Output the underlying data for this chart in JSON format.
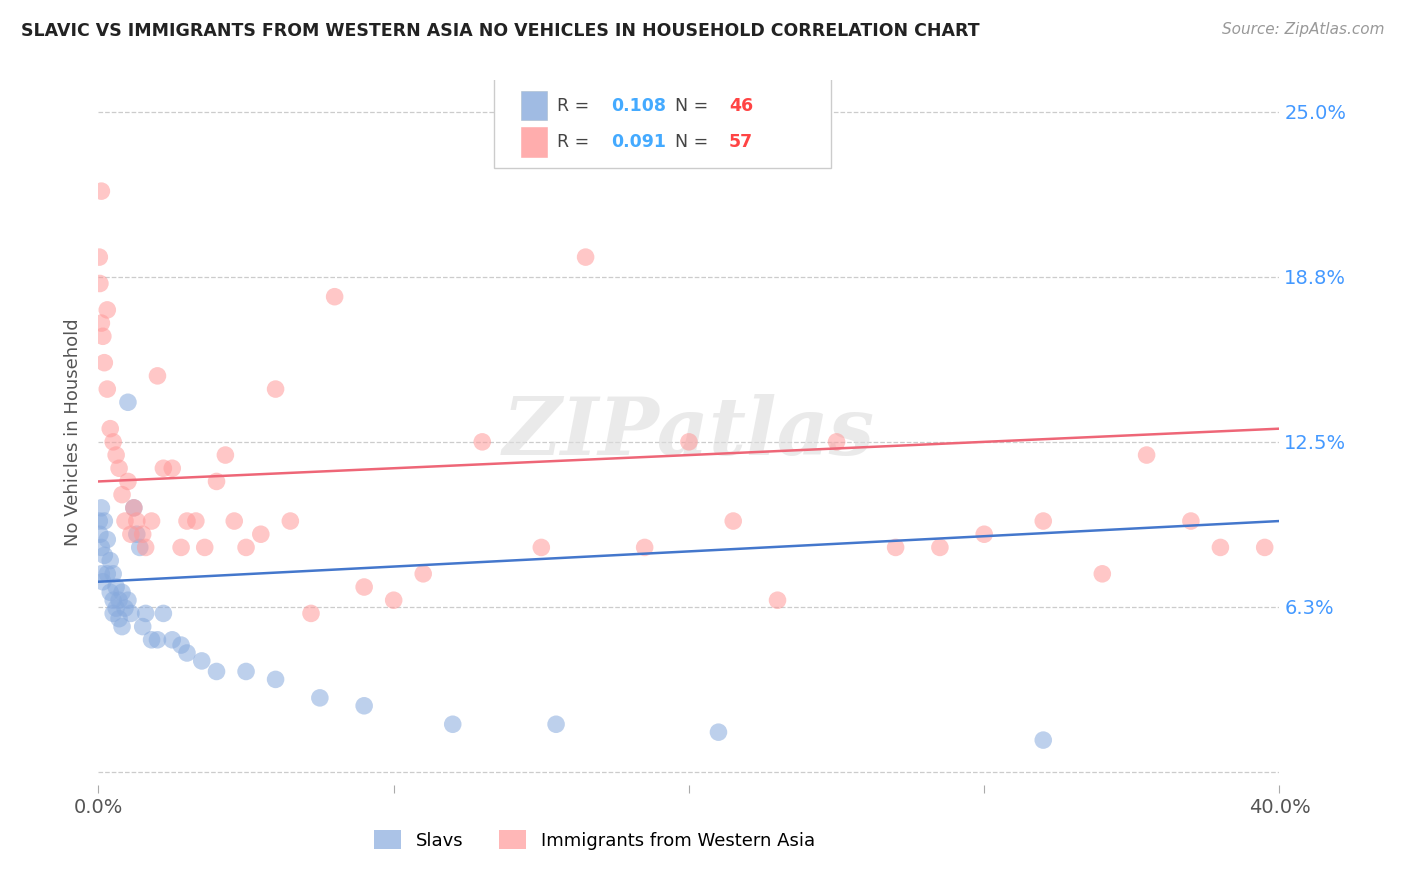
{
  "title": "SLAVIC VS IMMIGRANTS FROM WESTERN ASIA NO VEHICLES IN HOUSEHOLD CORRELATION CHART",
  "source": "Source: ZipAtlas.com",
  "ylabel": "No Vehicles in Household",
  "xlim": [
    0.0,
    0.4
  ],
  "ylim": [
    -0.005,
    0.262
  ],
  "yticks": [
    0.0,
    0.0625,
    0.125,
    0.1875,
    0.25
  ],
  "ytick_labels": [
    "",
    "6.3%",
    "12.5%",
    "18.8%",
    "25.0%"
  ],
  "xticks": [
    0.0,
    0.1,
    0.2,
    0.3,
    0.4
  ],
  "xtick_labels": [
    "0.0%",
    "",
    "",
    "",
    "40.0%"
  ],
  "slavs_R": 0.108,
  "slavs_N": 46,
  "immigrants_R": 0.091,
  "immigrants_N": 57,
  "blue_color": "#88AADD",
  "pink_color": "#FF9999",
  "blue_line_color": "#4477CC",
  "pink_line_color": "#EE6677",
  "legend_R_color": "#44AAFF",
  "legend_N_color": "#FF4444",
  "slavs_x": [
    0.0003,
    0.0005,
    0.001,
    0.001,
    0.001,
    0.0015,
    0.002,
    0.002,
    0.003,
    0.003,
    0.004,
    0.004,
    0.005,
    0.005,
    0.005,
    0.006,
    0.006,
    0.007,
    0.007,
    0.008,
    0.008,
    0.009,
    0.01,
    0.01,
    0.011,
    0.012,
    0.013,
    0.014,
    0.015,
    0.016,
    0.018,
    0.02,
    0.022,
    0.025,
    0.028,
    0.03,
    0.035,
    0.04,
    0.05,
    0.06,
    0.075,
    0.09,
    0.12,
    0.155,
    0.21,
    0.32
  ],
  "slavs_y": [
    0.095,
    0.09,
    0.1,
    0.085,
    0.075,
    0.072,
    0.095,
    0.082,
    0.088,
    0.075,
    0.08,
    0.068,
    0.075,
    0.065,
    0.06,
    0.07,
    0.062,
    0.065,
    0.058,
    0.068,
    0.055,
    0.062,
    0.14,
    0.065,
    0.06,
    0.1,
    0.09,
    0.085,
    0.055,
    0.06,
    0.05,
    0.05,
    0.06,
    0.05,
    0.048,
    0.045,
    0.042,
    0.038,
    0.038,
    0.035,
    0.028,
    0.025,
    0.018,
    0.018,
    0.015,
    0.012
  ],
  "immigrants_x": [
    0.0003,
    0.0005,
    0.001,
    0.001,
    0.0015,
    0.002,
    0.003,
    0.003,
    0.004,
    0.005,
    0.006,
    0.007,
    0.008,
    0.009,
    0.01,
    0.011,
    0.012,
    0.013,
    0.015,
    0.016,
    0.018,
    0.02,
    0.022,
    0.025,
    0.028,
    0.03,
    0.033,
    0.036,
    0.04,
    0.043,
    0.046,
    0.05,
    0.055,
    0.06,
    0.065,
    0.072,
    0.08,
    0.09,
    0.1,
    0.11,
    0.13,
    0.15,
    0.165,
    0.185,
    0.2,
    0.215,
    0.23,
    0.25,
    0.27,
    0.285,
    0.3,
    0.32,
    0.34,
    0.355,
    0.37,
    0.38,
    0.395
  ],
  "immigrants_y": [
    0.195,
    0.185,
    0.22,
    0.17,
    0.165,
    0.155,
    0.175,
    0.145,
    0.13,
    0.125,
    0.12,
    0.115,
    0.105,
    0.095,
    0.11,
    0.09,
    0.1,
    0.095,
    0.09,
    0.085,
    0.095,
    0.15,
    0.115,
    0.115,
    0.085,
    0.095,
    0.095,
    0.085,
    0.11,
    0.12,
    0.095,
    0.085,
    0.09,
    0.145,
    0.095,
    0.06,
    0.18,
    0.07,
    0.065,
    0.075,
    0.125,
    0.085,
    0.195,
    0.085,
    0.125,
    0.095,
    0.065,
    0.125,
    0.085,
    0.085,
    0.09,
    0.095,
    0.075,
    0.12,
    0.095,
    0.085,
    0.085
  ],
  "watermark": "ZIPatlas",
  "background_color": "#FFFFFF"
}
